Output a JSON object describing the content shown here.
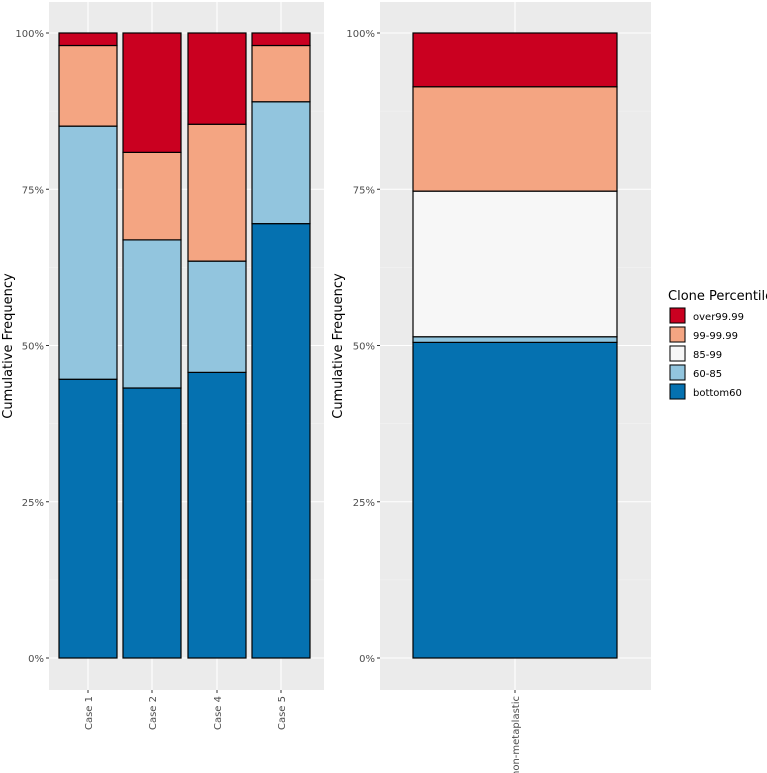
{
  "legend": {
    "title": "Clone Percentile",
    "entries": [
      {
        "label": "over99.99",
        "color": "#CA0020"
      },
      {
        "label": "99-99.99",
        "color": "#F4A582"
      },
      {
        "label": "85-99",
        "color": "#F7F7F7"
      },
      {
        "label": "60-85",
        "color": "#92C5DE"
      },
      {
        "label": "bottom60",
        "color": "#0571B0"
      }
    ]
  },
  "chart_data": [
    {
      "type": "bar",
      "stacked": true,
      "ylabel": "Cumulative Frequency",
      "ylim": [
        0,
        100
      ],
      "yticks": [
        "0%",
        "25%",
        "50%",
        "75%",
        "100%"
      ],
      "categories": [
        "Case 1",
        "Case 2",
        "Case 4",
        "Case 5"
      ],
      "series": [
        {
          "name": "bottom60",
          "values": [
            44.6,
            43.2,
            45.7,
            69.5
          ]
        },
        {
          "name": "60-85",
          "values": [
            40.5,
            23.7,
            17.8,
            19.5
          ]
        },
        {
          "name": "85-99",
          "values": [
            0,
            0,
            0,
            0
          ]
        },
        {
          "name": "99-99.99",
          "values": [
            12.9,
            14.0,
            21.9,
            9.0
          ]
        },
        {
          "name": "over99.99",
          "values": [
            2.0,
            19.1,
            14.6,
            2.0
          ]
        }
      ]
    },
    {
      "type": "bar",
      "stacked": true,
      "ylabel": "Cumulative Frequency",
      "ylim": [
        0,
        100
      ],
      "yticks": [
        "0%",
        "25%",
        "50%",
        "75%",
        "100%"
      ],
      "categories": [
        "non-metaplastic"
      ],
      "series": [
        {
          "name": "bottom60",
          "values": [
            50.5
          ]
        },
        {
          "name": "60-85",
          "values": [
            0.9
          ]
        },
        {
          "name": "85-99",
          "values": [
            23.3
          ]
        },
        {
          "name": "99-99.99",
          "values": [
            16.7
          ]
        },
        {
          "name": "over99.99",
          "values": [
            8.6
          ]
        }
      ]
    }
  ]
}
